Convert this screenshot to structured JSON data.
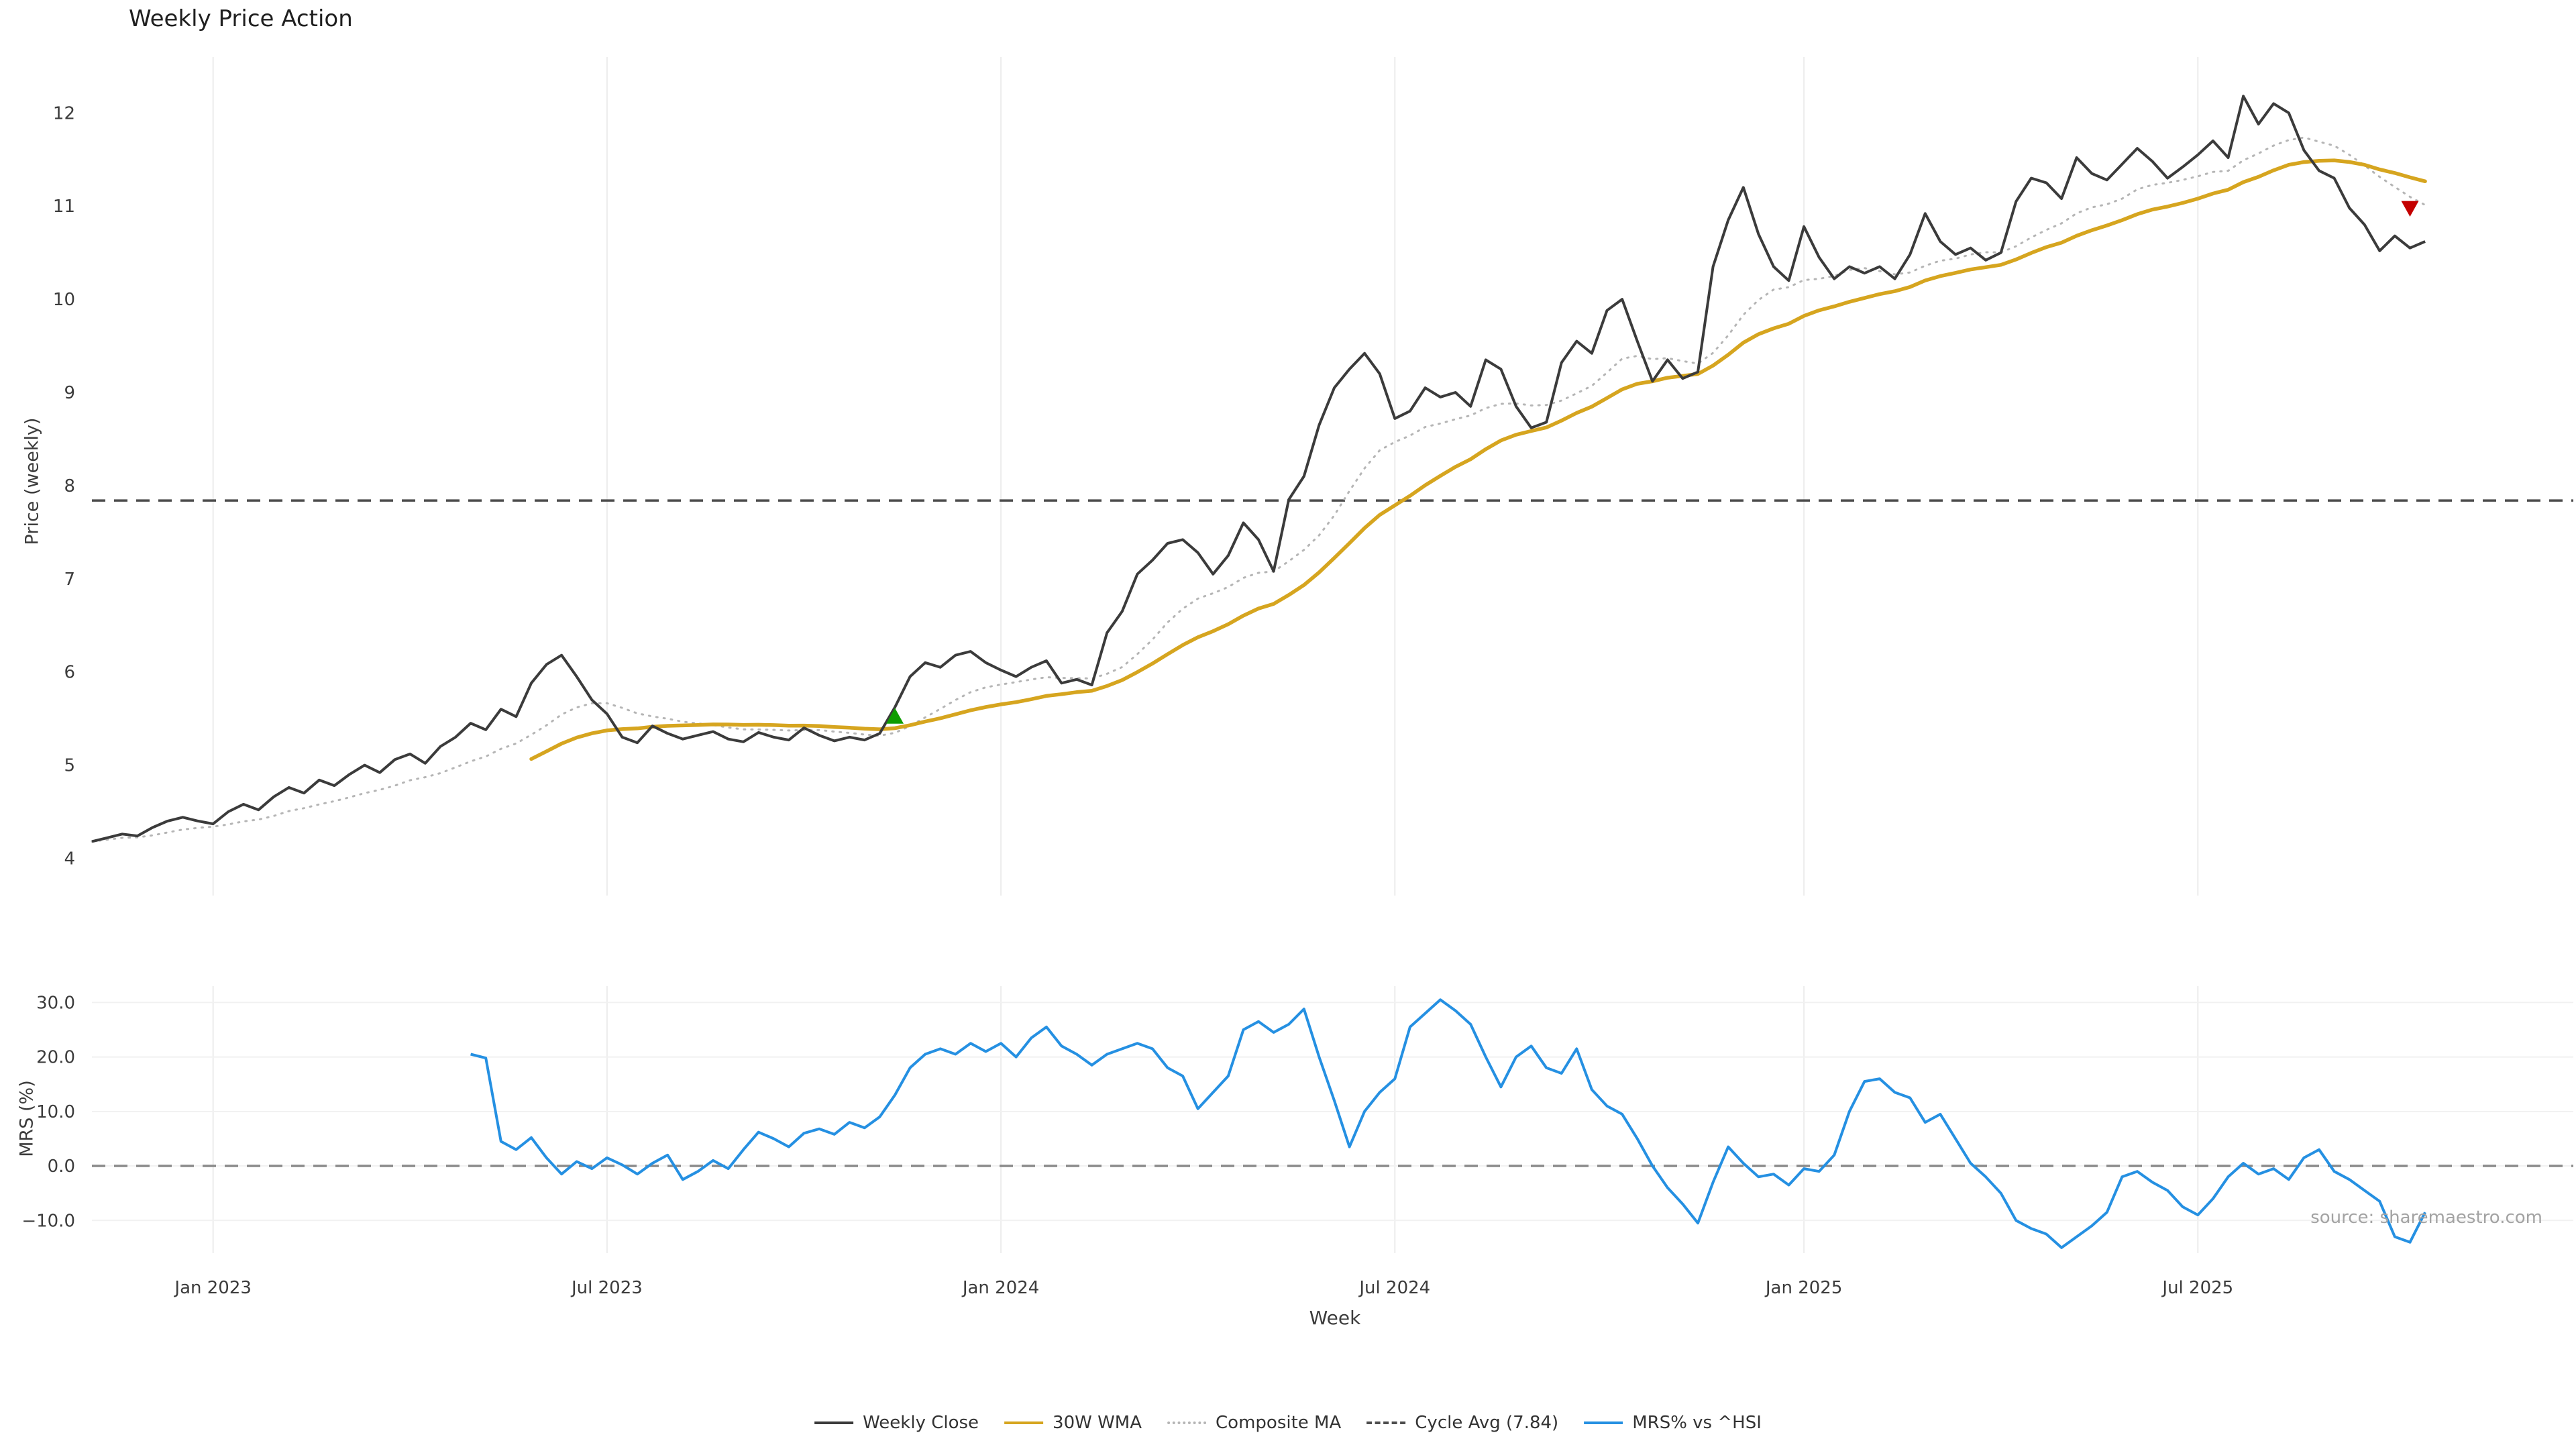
{
  "title": "Weekly Price Action",
  "watermark": "source: sharemaestro.com",
  "axes": {
    "price": {
      "label": "Price (weekly)",
      "ticks": [
        4,
        5,
        6,
        7,
        8,
        9,
        10,
        11,
        12
      ],
      "range": [
        3.6,
        12.6
      ]
    },
    "mrs": {
      "label": "MRS (%)",
      "ticks": [
        {
          "label": "30.0",
          "value": 30
        },
        {
          "label": "20.0",
          "value": 20
        },
        {
          "label": "10.0",
          "value": 10
        },
        {
          "label": "0.0",
          "value": 0
        },
        {
          "label": "−10.0",
          "value": -10
        }
      ],
      "range": [
        -16,
        33
      ]
    },
    "x": {
      "label": "Week",
      "ticks": [
        {
          "index": 8,
          "label": "Jan 2023"
        },
        {
          "index": 34,
          "label": "Jul 2023"
        },
        {
          "index": 60,
          "label": "Jan 2024"
        },
        {
          "index": 86,
          "label": "Jul 2024"
        },
        {
          "index": 113,
          "label": "Jan 2025"
        },
        {
          "index": 139,
          "label": "Jul 2025"
        }
      ]
    }
  },
  "legend": {
    "items": [
      {
        "key": "weekly-close",
        "label": "Weekly Close",
        "color": "#3b3b3b",
        "style": "solid"
      },
      {
        "key": "wma",
        "label": "30W WMA",
        "color": "#d6a51f",
        "style": "solid"
      },
      {
        "key": "composite-ma",
        "label": "Composite MA",
        "color": "#b5b5b5",
        "style": "dotted"
      },
      {
        "key": "cycle-avg",
        "label": "Cycle Avg (7.84)",
        "color": "#4d4d4d",
        "style": "dashed"
      },
      {
        "key": "mrs",
        "label": "MRS% vs ^HSI",
        "color": "#2590e2",
        "style": "solid"
      }
    ]
  },
  "chart_data": {
    "type": "line",
    "x_unit": "week",
    "title": "Weekly Price Action",
    "xlabel": "Week",
    "ylabel_top": "Price (weekly)",
    "ylabel_bottom": "MRS (%)",
    "x_tick_labels": [
      "Jan 2023",
      "Jul 2023",
      "Jan 2024",
      "Jul 2024",
      "Jan 2025",
      "Jul 2025"
    ],
    "ylim_price": [
      3.6,
      12.6
    ],
    "ylim_mrs": [
      -16,
      33
    ],
    "grid": "vertical-light",
    "legend_position": "bottom-center",
    "cycle_avg": 7.84,
    "wma_window": 30,
    "composite_windows": [
      5,
      10,
      20
    ],
    "mrs_start_index": 25,
    "series": [
      {
        "name": "Weekly Close",
        "panel": "price",
        "color": "#3b3b3b",
        "style": "solid",
        "values_key": "weekly_close"
      },
      {
        "name": "30W WMA",
        "panel": "price",
        "color": "#d6a51f",
        "style": "solid",
        "derived": "weighted_moving_average",
        "window": 30
      },
      {
        "name": "Composite MA",
        "panel": "price",
        "color": "#b5b5b5",
        "style": "dotted",
        "derived": "mean_of_smas",
        "windows": [
          5,
          10,
          20
        ]
      },
      {
        "name": "Cycle Avg",
        "panel": "price",
        "color": "#4d4d4d",
        "style": "dashed",
        "value": 7.84
      },
      {
        "name": "MRS% vs ^HSI",
        "panel": "mrs",
        "color": "#2590e2",
        "style": "solid",
        "values_key": "mrs_vs_hsi",
        "start_index": 25
      }
    ],
    "weekly_close": [
      4.18,
      4.22,
      4.26,
      4.24,
      4.33,
      4.4,
      4.44,
      4.4,
      4.37,
      4.5,
      4.58,
      4.52,
      4.66,
      4.76,
      4.7,
      4.84,
      4.78,
      4.9,
      5.0,
      4.92,
      5.06,
      5.12,
      5.02,
      5.2,
      5.3,
      5.45,
      5.38,
      5.6,
      5.52,
      5.88,
      6.08,
      6.18,
      5.95,
      5.7,
      5.55,
      5.3,
      5.24,
      5.42,
      5.34,
      5.28,
      5.32,
      5.36,
      5.28,
      5.25,
      5.35,
      5.3,
      5.27,
      5.4,
      5.32,
      5.26,
      5.3,
      5.27,
      5.34,
      5.62,
      5.95,
      6.1,
      6.05,
      6.18,
      6.22,
      6.1,
      6.02,
      5.95,
      6.05,
      6.12,
      5.88,
      5.92,
      5.86,
      6.42,
      6.65,
      7.05,
      7.2,
      7.38,
      7.42,
      7.28,
      7.05,
      7.25,
      7.6,
      7.42,
      7.08,
      7.85,
      8.1,
      8.65,
      9.05,
      9.25,
      9.42,
      9.2,
      8.72,
      8.8,
      9.05,
      8.95,
      9.0,
      8.85,
      9.35,
      9.25,
      8.85,
      8.62,
      8.68,
      9.32,
      9.55,
      9.42,
      9.88,
      10.0,
      9.55,
      9.12,
      9.35,
      9.15,
      9.22,
      10.35,
      10.85,
      11.2,
      10.7,
      10.35,
      10.2,
      10.78,
      10.45,
      10.22,
      10.35,
      10.28,
      10.35,
      10.22,
      10.48,
      10.92,
      10.62,
      10.48,
      10.55,
      10.42,
      10.5,
      11.05,
      11.3,
      11.25,
      11.08,
      11.52,
      11.35,
      11.28,
      11.45,
      11.62,
      11.48,
      11.3,
      11.42,
      11.55,
      11.7,
      11.52,
      12.18,
      11.88,
      12.1,
      12.0,
      11.6,
      11.38,
      11.3,
      10.98,
      10.8,
      10.52,
      10.68,
      10.55,
      10.62
    ],
    "mrs_vs_hsi": [
      20.5,
      19.8,
      4.5,
      3.0,
      5.2,
      1.5,
      -1.5,
      0.8,
      -0.5,
      1.5,
      0.2,
      -1.5,
      0.5,
      2.0,
      -2.5,
      -1.0,
      1.0,
      -0.5,
      3.0,
      6.2,
      5.0,
      3.5,
      6.0,
      6.8,
      5.8,
      8.0,
      7.0,
      9.0,
      13.0,
      18.0,
      20.5,
      21.5,
      20.5,
      22.5,
      21.0,
      22.5,
      20.0,
      23.5,
      25.5,
      22.0,
      20.5,
      18.5,
      20.5,
      21.5,
      22.5,
      21.5,
      18.0,
      16.5,
      10.5,
      13.5,
      16.5,
      25.0,
      26.5,
      24.5,
      26.0,
      28.8,
      20.0,
      12.0,
      3.5,
      10.0,
      13.5,
      16.0,
      25.5,
      28.0,
      30.5,
      28.5,
      26.0,
      20.0,
      14.5,
      20.0,
      22.0,
      18.0,
      17.0,
      21.5,
      14.0,
      11.0,
      9.5,
      5.0,
      0.0,
      -4.0,
      -7.0,
      -10.5,
      -3.0,
      3.5,
      0.5,
      -2.0,
      -1.5,
      -3.5,
      -0.5,
      -1.0,
      2.0,
      10.0,
      15.5,
      16.0,
      13.5,
      12.5,
      8.0,
      9.5,
      5.0,
      0.5,
      -2.0,
      -5.0,
      -10.0,
      -11.5,
      -12.5,
      -15.0,
      -13.0,
      -11.0,
      -8.5,
      -2.0,
      -1.0,
      -3.0,
      -4.5,
      -7.5,
      -9.0,
      -6.0,
      -2.0,
      0.5,
      -1.5,
      -0.5,
      -2.5,
      1.5,
      3.0,
      -1.0,
      -2.5,
      -4.5,
      -6.5,
      -13.0,
      -14.0,
      -8.5
    ],
    "markers": [
      {
        "name": "buy-signal-marker",
        "direction": "up",
        "week_index": 53,
        "value": 5.52,
        "color": "#0f9d00"
      },
      {
        "name": "sell-signal-marker",
        "direction": "down",
        "week_index": 153,
        "value": 10.98,
        "color": "#c40000"
      }
    ]
  }
}
